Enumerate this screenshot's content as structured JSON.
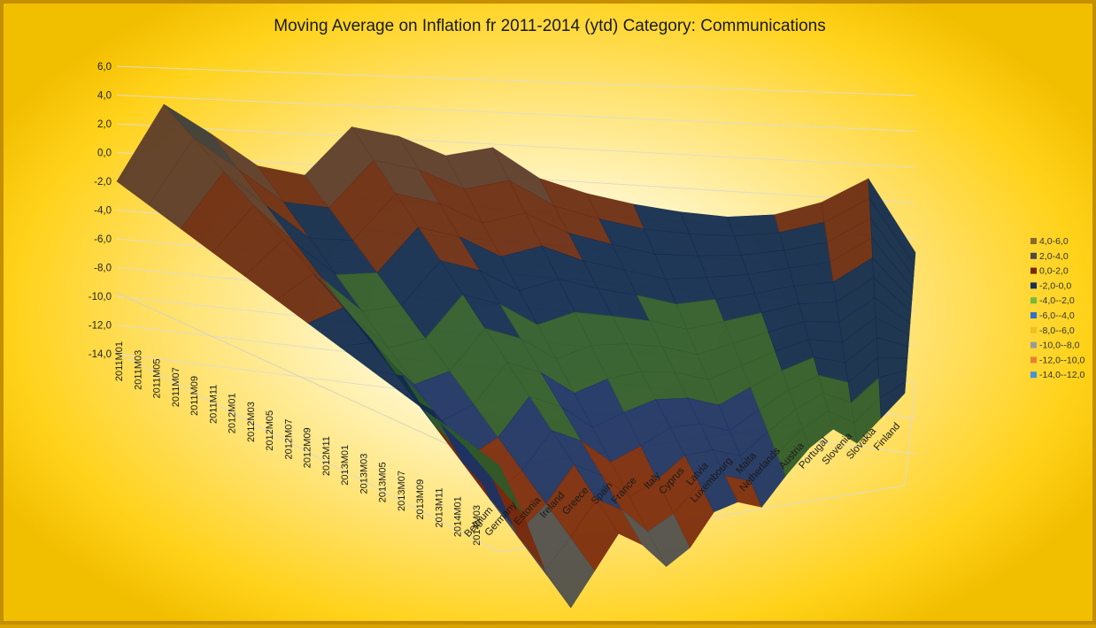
{
  "chart_data": {
    "type": "surface",
    "title": "Moving Average on Inflation fr 2011-2014 (ytd)  Category: Communications",
    "z_ticks": [
      "6,0",
      "4,0",
      "2,0",
      "0,0",
      "-2,0",
      "-4,0",
      "-6,0",
      "-8,0",
      "-10,0",
      "-12,0",
      "-14,0"
    ],
    "zlim": [
      -14,
      6
    ],
    "countries": [
      "Belgium",
      "Germany",
      "Estonia",
      "Ireland",
      "Greece",
      "Spain",
      "France",
      "Italy",
      "Cyprus",
      "Latvia",
      "Luxembourg",
      "Malta",
      "Netherlands",
      "Austria",
      "Portugal",
      "Slovenia",
      "Slovakia",
      "Finland"
    ],
    "months": [
      "2011M01",
      "2011M03",
      "2011M05",
      "2011M07",
      "2011M09",
      "2011M11",
      "2012M01",
      "2012M03",
      "2012M05",
      "2012M07",
      "2012M09",
      "2012M11",
      "2013M01",
      "2013M03",
      "2013M05",
      "2013M07",
      "2013M09",
      "2013M11",
      "2014M01",
      "2014M03"
    ],
    "front_month_values": [
      -3.0,
      -6.5,
      -10.8,
      -13.2,
      -11.0,
      -8.8,
      -9.8,
      -11.5,
      -10.5,
      -8.4,
      -8.0,
      -8.6,
      -6.8,
      -5.2,
      -4.2,
      -5.4,
      -4.0,
      -2.6
    ],
    "back_month_values": [
      -2.0,
      3.5,
      1.6,
      -0.5,
      -1.0,
      2.5,
      2.0,
      0.8,
      1.5,
      -0.5,
      -1.4,
      -2.0,
      -2.4,
      -2.6,
      -2.3,
      -1.3,
      0.5,
      -4.5
    ],
    "legend": {
      "position": "right",
      "entries": [
        {
          "label": "4,0-6,0",
          "color": "#8a6a2a"
        },
        {
          "label": "2,0-4,0",
          "color": "#4a4a4a"
        },
        {
          "label": "0,0-2,0",
          "color": "#7a2a0a"
        },
        {
          "label": "-2,0-0,0",
          "color": "#16305a"
        },
        {
          "label": "-4,0--2,0",
          "color": "#78b83a"
        },
        {
          "label": "-6,0--4,0",
          "color": "#3070c8"
        },
        {
          "label": "-8,0--6,0",
          "color": "#f0c020"
        },
        {
          "label": "-10,0--8,0",
          "color": "#9a9a9a"
        },
        {
          "label": "-12,0--10,0",
          "color": "#e88030"
        },
        {
          "label": "-14,0--12,0",
          "color": "#4a90d8"
        }
      ]
    }
  }
}
